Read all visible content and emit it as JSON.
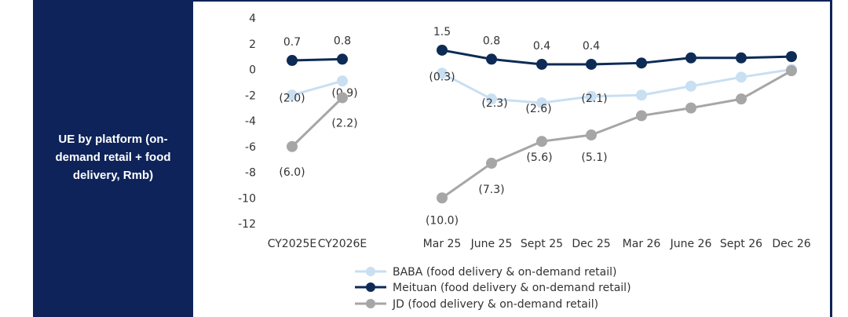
{
  "panel": {
    "label": "UE by platform (on-demand retail + food delivery, Rmb)"
  },
  "chart_data": {
    "type": "line",
    "categories": [
      "CY2025E",
      "CY2026E",
      "",
      "Mar 25",
      "June 25",
      "Sept 25",
      "Dec 25",
      "Mar 26",
      "June 26",
      "Sept 26",
      "Dec 26"
    ],
    "ylim": [
      -12,
      4
    ],
    "yticks": [
      4,
      2,
      0,
      -2,
      -4,
      -6,
      -8,
      -10,
      -12
    ],
    "grid": false,
    "legend_position": "bottom",
    "series": [
      {
        "name": "BABA (food delivery & on-demand retail)",
        "color": "#c9dff2",
        "segments": [
          [
            {
              "x": 0,
              "y": -2.0,
              "label": "(2.0)"
            },
            {
              "x": 1,
              "y": -0.9,
              "label": "(0.9)"
            }
          ],
          [
            {
              "x": 3,
              "y": -0.3,
              "label": "(0.3)"
            },
            {
              "x": 4,
              "y": -2.3,
              "label": "(2.3)"
            },
            {
              "x": 5,
              "y": -2.6,
              "label": "(2.6)"
            },
            {
              "x": 6,
              "y": -2.1,
              "label": "(2.1)"
            },
            {
              "x": 7,
              "y": -2.0
            },
            {
              "x": 8,
              "y": -1.3
            },
            {
              "x": 9,
              "y": -0.6
            },
            {
              "x": 10,
              "y": 0.0
            }
          ]
        ]
      },
      {
        "name": "Meituan (food delivery & on-demand retail)",
        "color": "#0d2b55",
        "segments": [
          [
            {
              "x": 0,
              "y": 0.7,
              "label": "0.7"
            },
            {
              "x": 1,
              "y": 0.8,
              "label": "0.8"
            }
          ],
          [
            {
              "x": 3,
              "y": 1.5,
              "label": "1.5"
            },
            {
              "x": 4,
              "y": 0.8,
              "label": "0.8"
            },
            {
              "x": 5,
              "y": 0.4,
              "label": "0.4"
            },
            {
              "x": 6,
              "y": 0.4,
              "label": "0.4"
            },
            {
              "x": 7,
              "y": 0.5
            },
            {
              "x": 8,
              "y": 0.9
            },
            {
              "x": 9,
              "y": 0.9
            },
            {
              "x": 10,
              "y": 1.0
            }
          ]
        ]
      },
      {
        "name": "JD (food delivery & on-demand retail)",
        "color": "#a6a6a6",
        "segments": [
          [
            {
              "x": 0,
              "y": -6.0,
              "label": "(6.0)"
            },
            {
              "x": 1,
              "y": -2.2,
              "label": "(2.2)"
            }
          ],
          [
            {
              "x": 3,
              "y": -10.0,
              "label": "(10.0)"
            },
            {
              "x": 4,
              "y": -7.3,
              "label": "(7.3)"
            },
            {
              "x": 5,
              "y": -5.6,
              "label": "(5.6)"
            },
            {
              "x": 6,
              "y": -5.1,
              "label": "(5.1)"
            },
            {
              "x": 7,
              "y": -3.6
            },
            {
              "x": 8,
              "y": -3.0
            },
            {
              "x": 9,
              "y": -2.3
            },
            {
              "x": 10,
              "y": -0.1
            }
          ]
        ]
      }
    ]
  }
}
